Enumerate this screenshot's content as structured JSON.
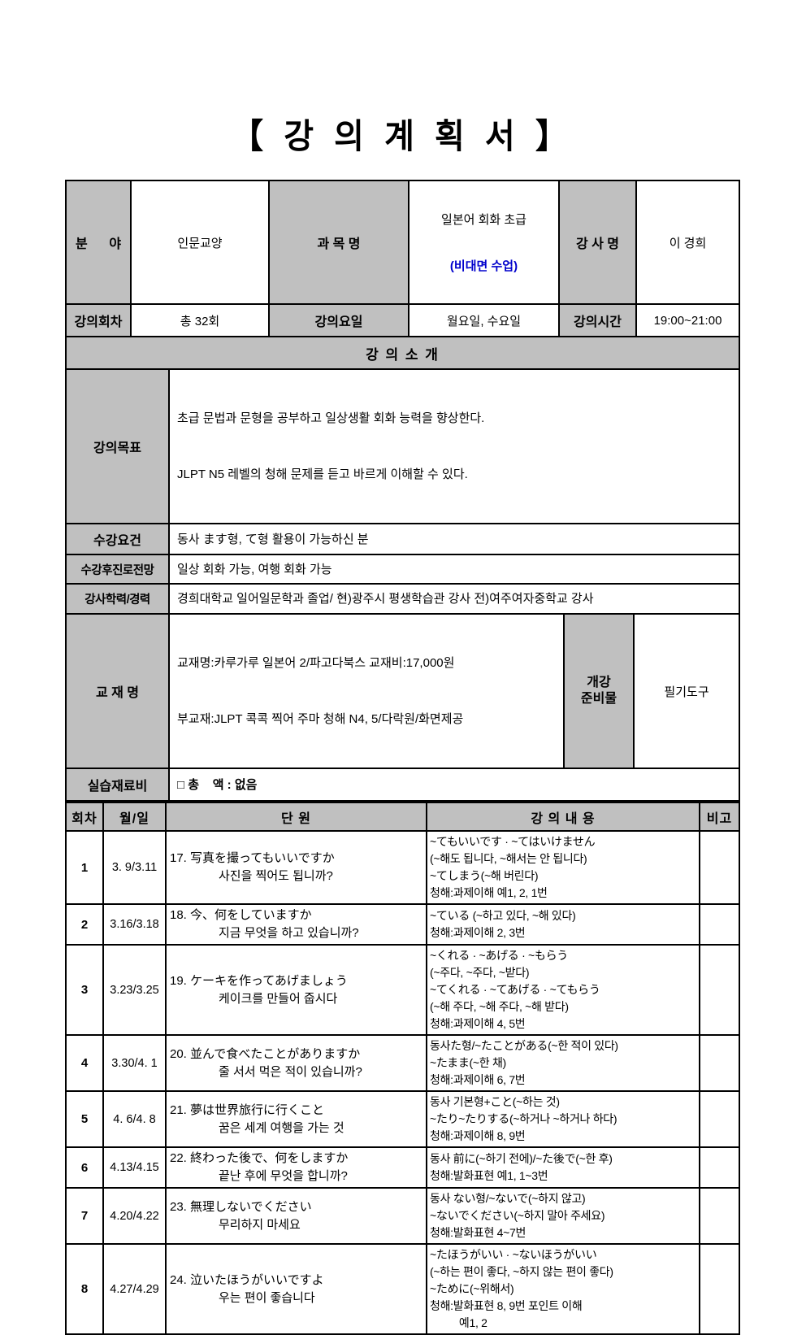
{
  "doc_title": "【 강 의 계 획 서 】",
  "colors": {
    "header_bg": "#c0c0c0",
    "note_blue": "#0000cc",
    "border": "#000000"
  },
  "info": {
    "field_label": "분      야",
    "field_value": "인문교양",
    "subject_label": "과 목 명",
    "subject_value": "일본어 회화 초급",
    "subject_note": "(비대면 수업)",
    "instructor_label": "강 사 명",
    "instructor_value": "이 경희",
    "sessions_label": "강의회차",
    "sessions_value": "총 32회",
    "days_label": "강의요일",
    "days_value": "월요일, 수요일",
    "time_label": "강의시간",
    "time_value": "19:00~21:00"
  },
  "intro": {
    "section_title": "강 의 소 개",
    "goal_label": "강의목표",
    "goal_line1": "초급 문법과 문형을 공부하고 일상생활 회화 능력을 향상한다.",
    "goal_line2": "JLPT N5 레벨의 청해 문제를 듣고 바르게 이해할 수 있다.",
    "requirement_label": "수강요건",
    "requirement_value": "동사 ます형, て형 활용이 가능하신 분",
    "career_label": "수강후진로전망",
    "career_value": "일상 회화 가능, 여행 회화 가능",
    "history_label": "강사학력/경력",
    "history_value": "경희대학교 일어일문학과 졸업/ 현)광주시 평생학습관 강사 전)여주여자중학교 강사",
    "textbook_label": "교 재 명",
    "textbook_line1": "교재명:카루가루 일본어 2/파고다북스 교재비:17,000원",
    "textbook_line2": "부교재:JLPT 콕콕 찍어 주마 청해 N4, 5/다락원/화면제공",
    "prep_label": "개강\n준비물",
    "prep_value": "필기도구",
    "material_label": "실습재료비",
    "material_value": "□ 총    액 : 없음"
  },
  "schedule": {
    "headers": {
      "no": "회차",
      "date": "월/일",
      "unit": "단 원",
      "content": "강 의 내 용",
      "note": "비고"
    },
    "rows": [
      {
        "no": "1",
        "date": "3. 9/3.11",
        "unit_line1": "17. 写真を撮ってもいいですか",
        "unit_line2": "사진을 찍어도 됩니까?",
        "content": [
          "~てもいいです · ~てはいけません",
          "(~해도 됩니다, ~해서는 안 됩니다)",
          "~てしまう(~해 버린다)",
          "청해:과제이해 예1, 2, 1번"
        ],
        "note": ""
      },
      {
        "no": "2",
        "date": "3.16/3.18",
        "unit_line1": "18. 今、何をしていますか",
        "unit_line2": "지금 무엇을 하고 있습니까?",
        "content": [
          "~ている (~하고 있다, ~해 있다)",
          "청해:과제이해 2, 3번"
        ],
        "note": ""
      },
      {
        "no": "3",
        "date": "3.23/3.25",
        "unit_line1": "19. ケーキを作ってあげましょう",
        "unit_line2": "케이크를 만들어 줍시다",
        "content": [
          "~くれる · ~あげる · ~もらう",
          "(~주다, ~주다, ~받다)",
          "~てくれる · ~てあげる · ~てもらう",
          "(~해 주다, ~해 주다, ~해 받다)",
          "청해:과제이해 4, 5번"
        ],
        "note": ""
      },
      {
        "no": "4",
        "date": "3.30/4. 1",
        "unit_line1": "20. 並んで食べたことがありますか",
        "unit_line2": "줄 서서 먹은 적이 있습니까?",
        "content": [
          "동사た형/~たことがある(~한 적이 있다)",
          "~たまま(~한 채)",
          "청해:과제이해 6, 7번"
        ],
        "note": ""
      },
      {
        "no": "5",
        "date": "4. 6/4. 8",
        "unit_line1": "21. 夢は世界旅行に行くこと",
        "unit_line2": "꿈은 세계 여행을 가는 것",
        "content": [
          "동사 기본형+こと(~하는 것)",
          "~たり~たりする(~하거나 ~하거나 하다)",
          "청해:과제이해 8, 9번"
        ],
        "note": ""
      },
      {
        "no": "6",
        "date": "4.13/4.15",
        "unit_line1": "22. 終わった後で、何をしますか",
        "unit_line2": "끝난 후에 무엇을 합니까?",
        "content": [
          "동사 前に(~하기 전에)/~た後で(~한 후)",
          "청해:발화표현 예1, 1~3번"
        ],
        "note": ""
      },
      {
        "no": "7",
        "date": "4.20/4.22",
        "unit_line1": "23. 無理しないでください",
        "unit_line2": "무리하지 마세요",
        "content": [
          "동사 ない형/~ないで(~하지 않고)",
          "~ないでください(~하지 말아 주세요)",
          "청해:발화표현 4~7번"
        ],
        "note": ""
      },
      {
        "no": "8",
        "date": "4.27/4.29",
        "unit_line1": "24. 泣いたほうがいいですよ",
        "unit_line2": "우는 편이 좋습니다",
        "content": [
          "~たほうがいい · ~ないほうがいい",
          "(~하는 편이 좋다, ~하지 않는 편이 좋다)",
          "~ために(~위해서)",
          "청해:발화표현 8, 9번 포인트 이해",
          "          예1, 2"
        ],
        "note": ""
      }
    ]
  }
}
